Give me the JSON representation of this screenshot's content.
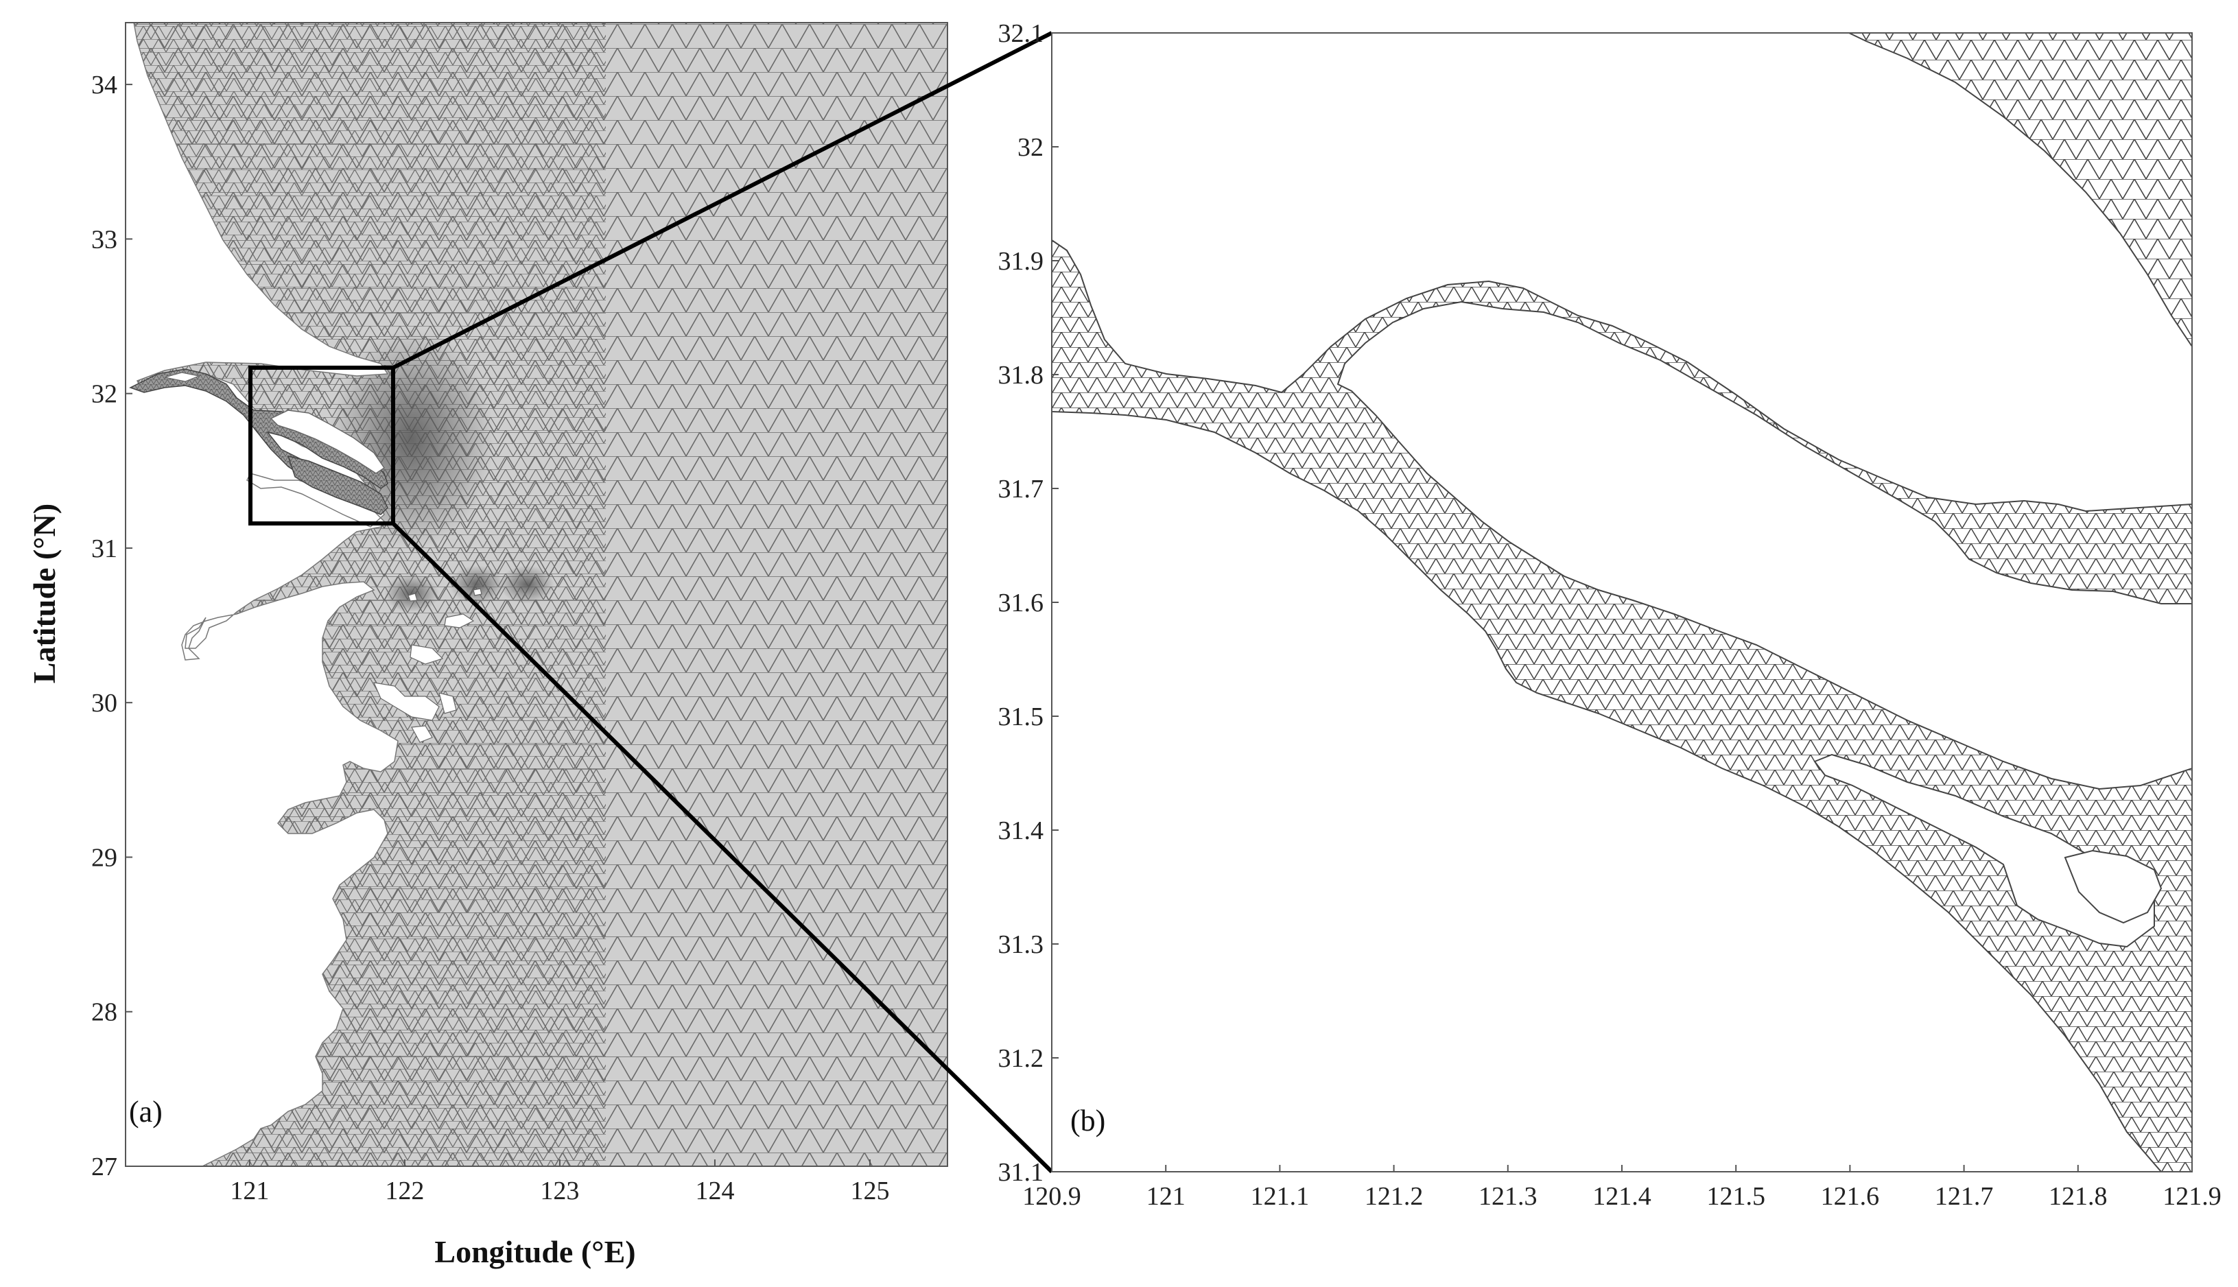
{
  "figure": {
    "panel_a": {
      "label": "(a)",
      "x_ticks": [
        "121",
        "122",
        "123",
        "124",
        "125"
      ],
      "y_ticks": [
        "27",
        "28",
        "29",
        "30",
        "31",
        "32",
        "33",
        "34"
      ],
      "xlabel": "Longitude (°E)",
      "ylabel": "Latitude (°N)",
      "xlim": [
        120.2,
        125.5
      ],
      "ylim": [
        27,
        34.4
      ],
      "inset_box": {
        "lon": [
          121.05,
          121.95
        ],
        "lat": [
          31.1,
          32.1
        ]
      },
      "colors": {
        "mesh_fill": "#cfcfcf",
        "mesh_line": "#6a6a6a",
        "dense_mesh": "#555555",
        "land": "#ffffff"
      }
    },
    "panel_b": {
      "label": "(b)",
      "x_ticks": [
        "120.9",
        "121",
        "121.1",
        "121.2",
        "121.3",
        "121.4",
        "121.5",
        "121.6",
        "121.7",
        "121.8",
        "121.9"
      ],
      "y_ticks": [
        "31.1",
        "31.2",
        "31.3",
        "31.4",
        "31.5",
        "31.6",
        "31.7",
        "31.8",
        "31.9",
        "32",
        "32.1"
      ],
      "xlim": [
        120.9,
        121.9
      ],
      "ylim": [
        31.1,
        32.1
      ],
      "colors": {
        "mesh_fill": "#ffffff",
        "mesh_line": "#444444"
      }
    }
  }
}
